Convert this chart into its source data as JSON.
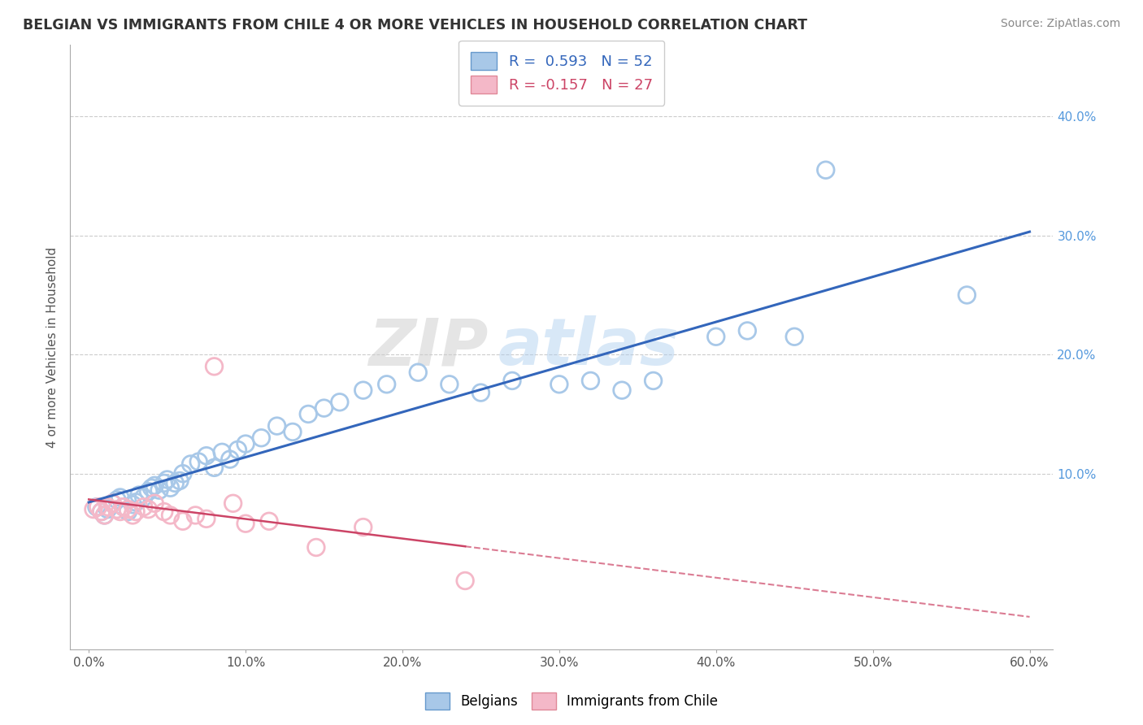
{
  "title": "BELGIAN VS IMMIGRANTS FROM CHILE 4 OR MORE VEHICLES IN HOUSEHOLD CORRELATION CHART",
  "source": "Source: ZipAtlas.com",
  "xlim": [
    -0.012,
    0.615
  ],
  "ylim": [
    -0.048,
    0.46
  ],
  "ylabel": "4 or more Vehicles in Household",
  "watermark_zip": "ZIP",
  "watermark_atlas": "atlas",
  "belgian_R": 0.593,
  "belgian_N": 52,
  "chile_R": -0.157,
  "chile_N": 27,
  "belgian_color": "#a8c8e8",
  "belgian_edge_color": "#6699cc",
  "chile_color": "#f4b8c8",
  "chile_edge_color": "#e08898",
  "belgian_line_color": "#3366bb",
  "chile_line_color": "#cc4466",
  "title_color": "#333333",
  "source_color": "#888888",
  "grid_color": "#cccccc",
  "background_color": "#ffffff",
  "right_ytick_color": "#5599dd",
  "belgian_x": [
    0.005,
    0.008,
    0.01,
    0.012,
    0.015,
    0.018,
    0.02,
    0.022,
    0.025,
    0.028,
    0.03,
    0.032,
    0.035,
    0.038,
    0.04,
    0.042,
    0.045,
    0.048,
    0.05,
    0.052,
    0.055,
    0.058,
    0.06,
    0.065,
    0.07,
    0.075,
    0.08,
    0.085,
    0.09,
    0.095,
    0.1,
    0.11,
    0.12,
    0.13,
    0.14,
    0.15,
    0.16,
    0.175,
    0.19,
    0.21,
    0.23,
    0.25,
    0.27,
    0.3,
    0.32,
    0.34,
    0.36,
    0.4,
    0.42,
    0.45,
    0.47,
    0.56
  ],
  "belgian_y": [
    0.072,
    0.068,
    0.065,
    0.07,
    0.075,
    0.078,
    0.08,
    0.072,
    0.068,
    0.074,
    0.076,
    0.082,
    0.08,
    0.085,
    0.088,
    0.09,
    0.086,
    0.092,
    0.095,
    0.088,
    0.092,
    0.094,
    0.1,
    0.108,
    0.11,
    0.115,
    0.105,
    0.118,
    0.112,
    0.12,
    0.125,
    0.13,
    0.14,
    0.135,
    0.15,
    0.155,
    0.16,
    0.17,
    0.175,
    0.185,
    0.175,
    0.168,
    0.178,
    0.175,
    0.178,
    0.17,
    0.178,
    0.215,
    0.22,
    0.215,
    0.355,
    0.25
  ],
  "chile_x": [
    0.003,
    0.006,
    0.008,
    0.01,
    0.012,
    0.015,
    0.018,
    0.02,
    0.022,
    0.025,
    0.028,
    0.03,
    0.035,
    0.038,
    0.042,
    0.048,
    0.052,
    0.06,
    0.068,
    0.075,
    0.08,
    0.092,
    0.1,
    0.115,
    0.145,
    0.175,
    0.24
  ],
  "chile_y": [
    0.07,
    0.072,
    0.068,
    0.065,
    0.072,
    0.075,
    0.07,
    0.068,
    0.072,
    0.07,
    0.065,
    0.068,
    0.072,
    0.07,
    0.075,
    0.068,
    0.065,
    0.06,
    0.065,
    0.062,
    0.19,
    0.075,
    0.058,
    0.06,
    0.038,
    0.055,
    0.01
  ]
}
